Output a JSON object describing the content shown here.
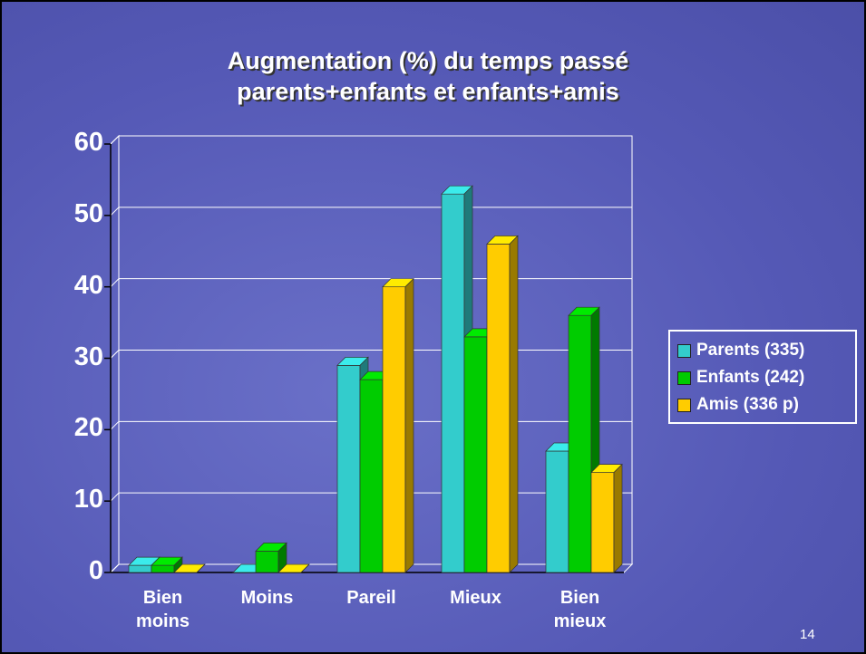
{
  "chart_data": {
    "type": "bar3d",
    "title": [
      "Augmentation (%) du temps passé",
      "parents+enfants et enfants+amis"
    ],
    "categories": [
      "Bien moins",
      "Moins",
      "Pareil",
      "Mieux",
      "Bien mieux"
    ],
    "series": [
      {
        "name": "Parents (335)",
        "color": "#33cccc",
        "values": [
          1,
          0,
          29,
          53,
          17
        ]
      },
      {
        "name": "Enfants (242)",
        "color": "#00cc00",
        "values": [
          1,
          3,
          27,
          33,
          36
        ]
      },
      {
        "name": "Amis (336 p)",
        "color": "#ffcc00",
        "values": [
          0,
          0,
          40,
          46,
          14
        ]
      }
    ],
    "ylim": [
      0,
      60
    ],
    "yticks": [
      0,
      10,
      20,
      30,
      40,
      50,
      60
    ],
    "grid": true,
    "legend": "right"
  },
  "slide_number": "14"
}
